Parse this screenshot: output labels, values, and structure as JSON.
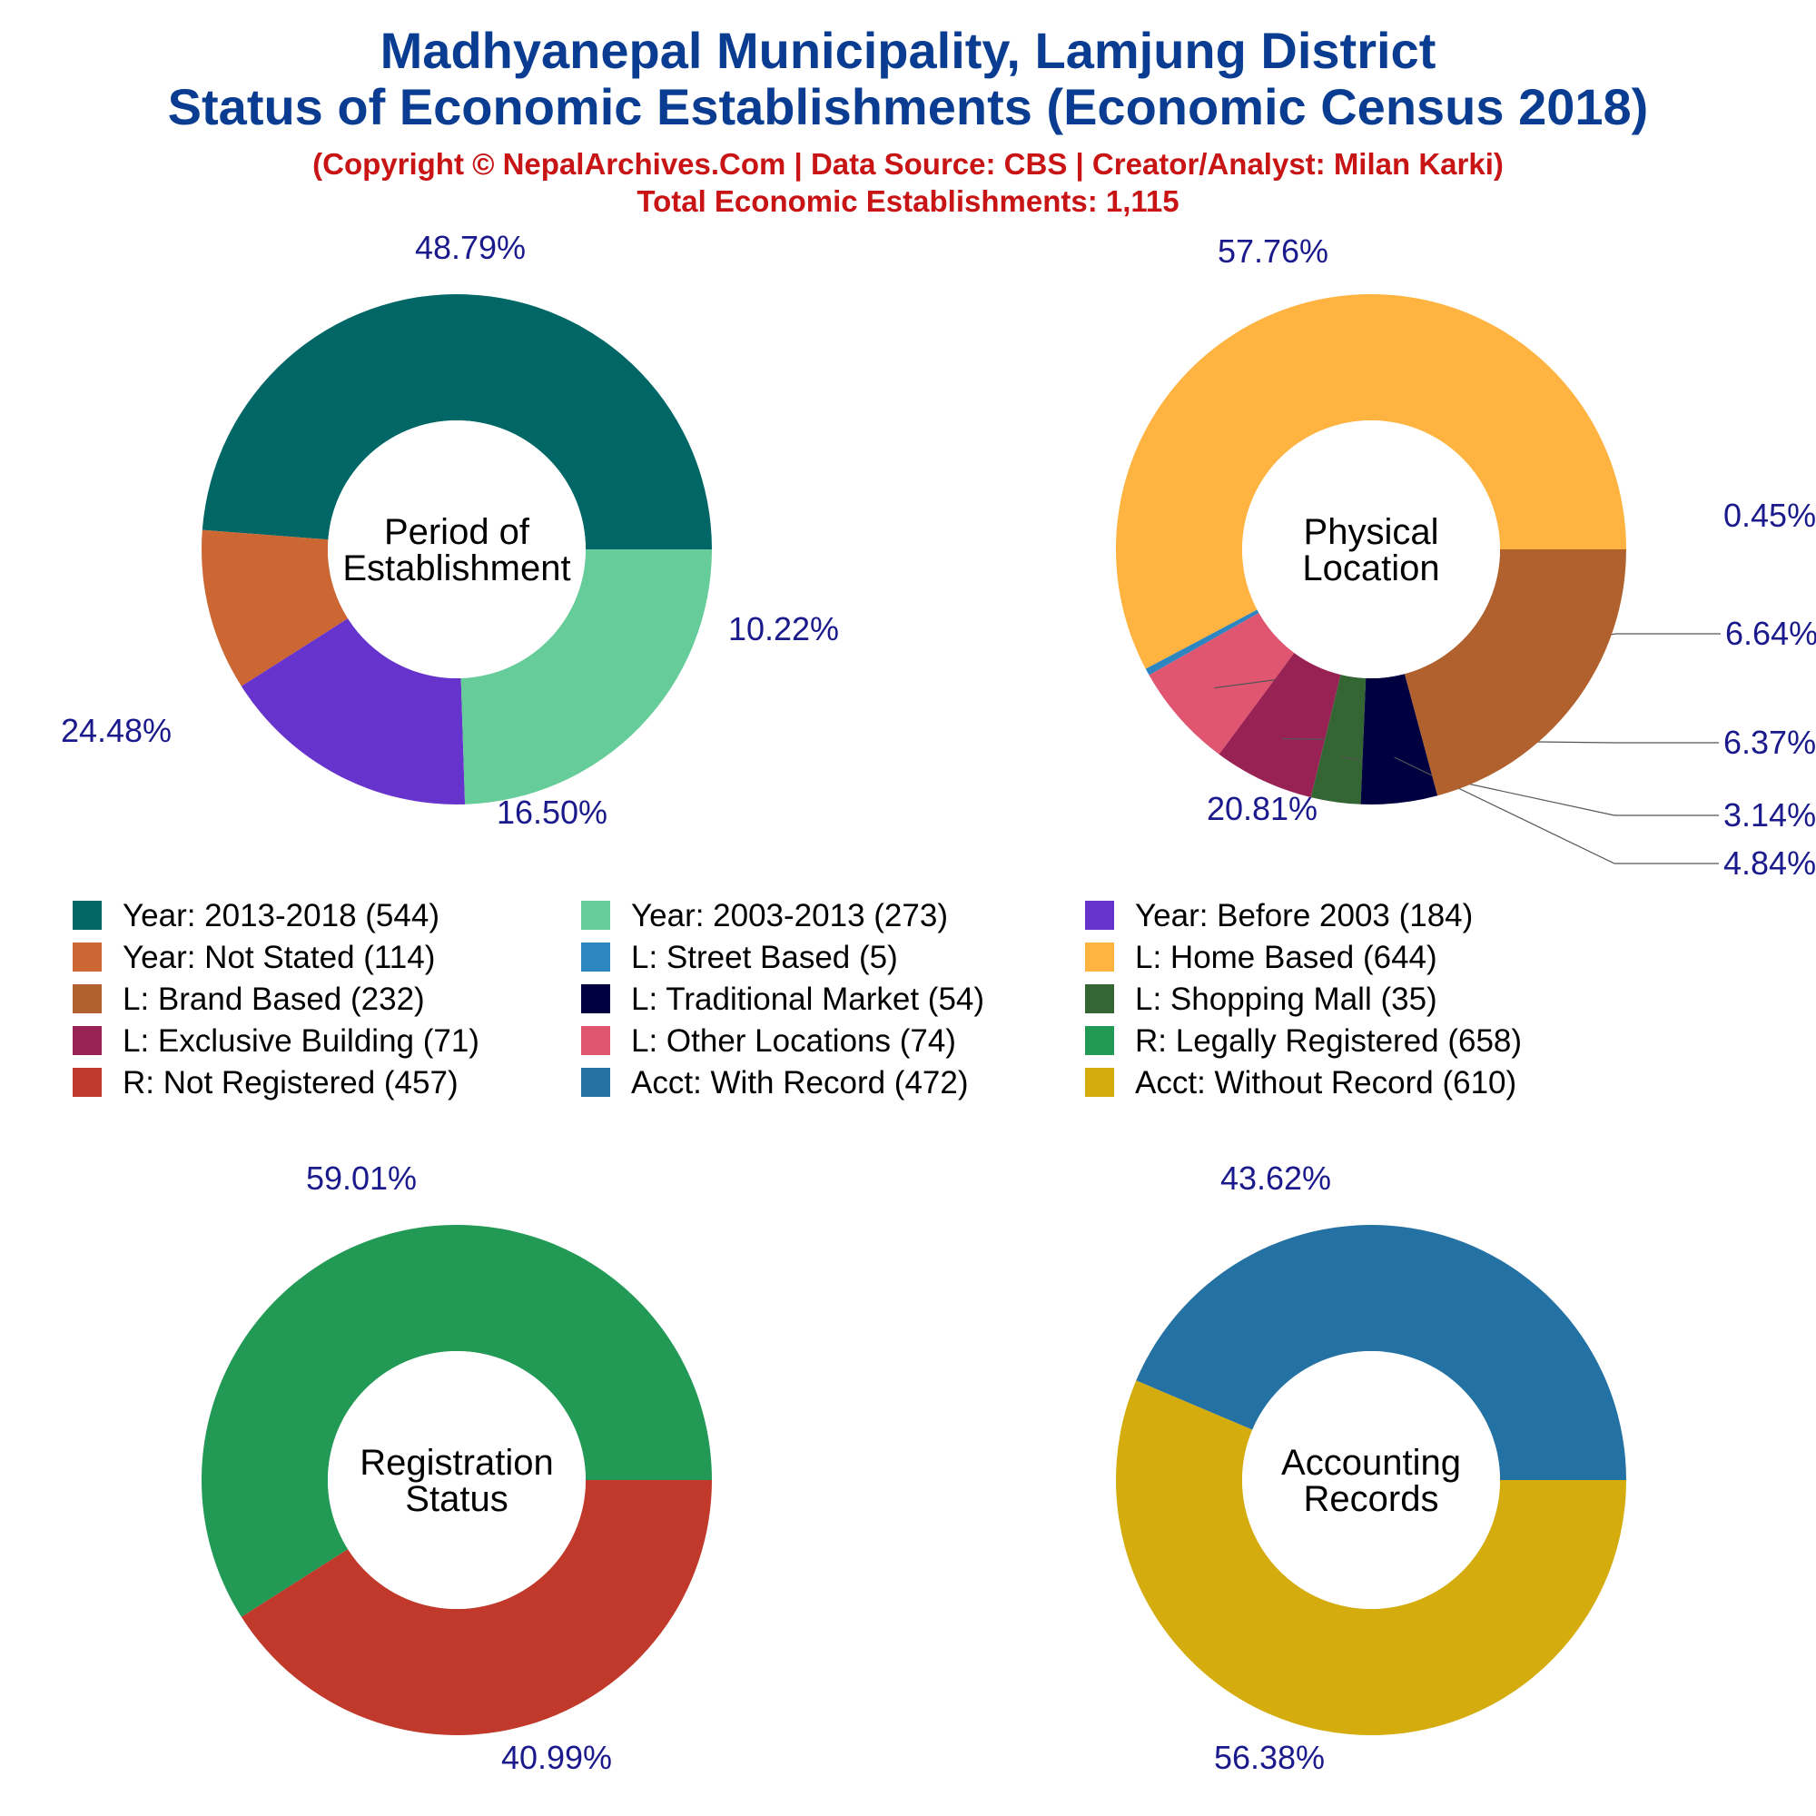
{
  "header": {
    "title_line1": "Madhyanepal Municipality, Lamjung District",
    "title_line2": "Status of Economic Establishments (Economic Census 2018)",
    "credit": "(Copyright © NepalArchives.Com | Data Source: CBS | Creator/Analyst: Milan Karki)",
    "total": "Total Economic Establishments: 1,115"
  },
  "colors": {
    "title": "#0a3d91",
    "subtitle": "#c81414",
    "percent_label": "#1a1a8c"
  },
  "legend": [
    {
      "label": "Year: 2013-2018 (544)",
      "color": "#006666"
    },
    {
      "label": "Year: 2003-2013 (273)",
      "color": "#66cc99"
    },
    {
      "label": "Year: Before 2003 (184)",
      "color": "#6633cc"
    },
    {
      "label": "Year: Not Stated (114)",
      "color": "#cc6633"
    },
    {
      "label": "L: Street Based (5)",
      "color": "#2e86c1"
    },
    {
      "label": "L: Home Based (644)",
      "color": "#ffb340"
    },
    {
      "label": "L: Brand Based (232)",
      "color": "#b0612e"
    },
    {
      "label": "L: Traditional Market (54)",
      "color": "#000040"
    },
    {
      "label": "L: Shopping Mall (35)",
      "color": "#336633"
    },
    {
      "label": "L: Exclusive Building (71)",
      "color": "#992255"
    },
    {
      "label": "L: Other Locations (74)",
      "color": "#e05570"
    },
    {
      "label": "R: Legally Registered (658)",
      "color": "#229955"
    },
    {
      "label": "R: Not Registered (457)",
      "color": "#c0392b"
    },
    {
      "label": "Acct: With Record (472)",
      "color": "#2471a3"
    },
    {
      "label": "Acct: Without Record (610)",
      "color": "#d4ac0d"
    }
  ],
  "chart_data": [
    {
      "type": "pie",
      "center_label": [
        "Period of",
        "Establishment"
      ],
      "categories": [
        "Year: 2013-2018",
        "Year: Not Stated",
        "Year: Before 2003",
        "Year: 2003-2013"
      ],
      "values": [
        544,
        114,
        184,
        273
      ],
      "percent_labels": [
        "48.79%",
        "10.22%",
        "16.50%",
        "24.48%"
      ],
      "colors": [
        "#006666",
        "#cc6633",
        "#6633cc",
        "#66cc99"
      ]
    },
    {
      "type": "pie",
      "center_label": [
        "Physical",
        "Location"
      ],
      "categories": [
        "L: Home Based",
        "L: Street Based",
        "L: Other Locations",
        "L: Exclusive Building",
        "L: Shopping Mall",
        "L: Traditional Market",
        "L: Brand Based"
      ],
      "values": [
        644,
        5,
        74,
        71,
        35,
        54,
        232
      ],
      "percent_labels": [
        "57.76%",
        "0.45%",
        "6.64%",
        "6.37%",
        "3.14%",
        "4.84%",
        "20.81%"
      ],
      "colors": [
        "#ffb340",
        "#2e86c1",
        "#e05570",
        "#992255",
        "#336633",
        "#000040",
        "#b0612e"
      ]
    },
    {
      "type": "pie",
      "center_label": [
        "Registration",
        "Status"
      ],
      "categories": [
        "R: Legally Registered",
        "R: Not Registered"
      ],
      "values": [
        658,
        457
      ],
      "percent_labels": [
        "59.01%",
        "40.99%"
      ],
      "colors": [
        "#229955",
        "#c0392b"
      ]
    },
    {
      "type": "pie",
      "center_label": [
        "Accounting",
        "Records"
      ],
      "categories": [
        "Acct: With Record",
        "Acct: Without Record"
      ],
      "values": [
        472,
        610
      ],
      "percent_labels": [
        "43.62%",
        "56.38%"
      ],
      "colors": [
        "#2471a3",
        "#d4ac0d"
      ]
    }
  ]
}
